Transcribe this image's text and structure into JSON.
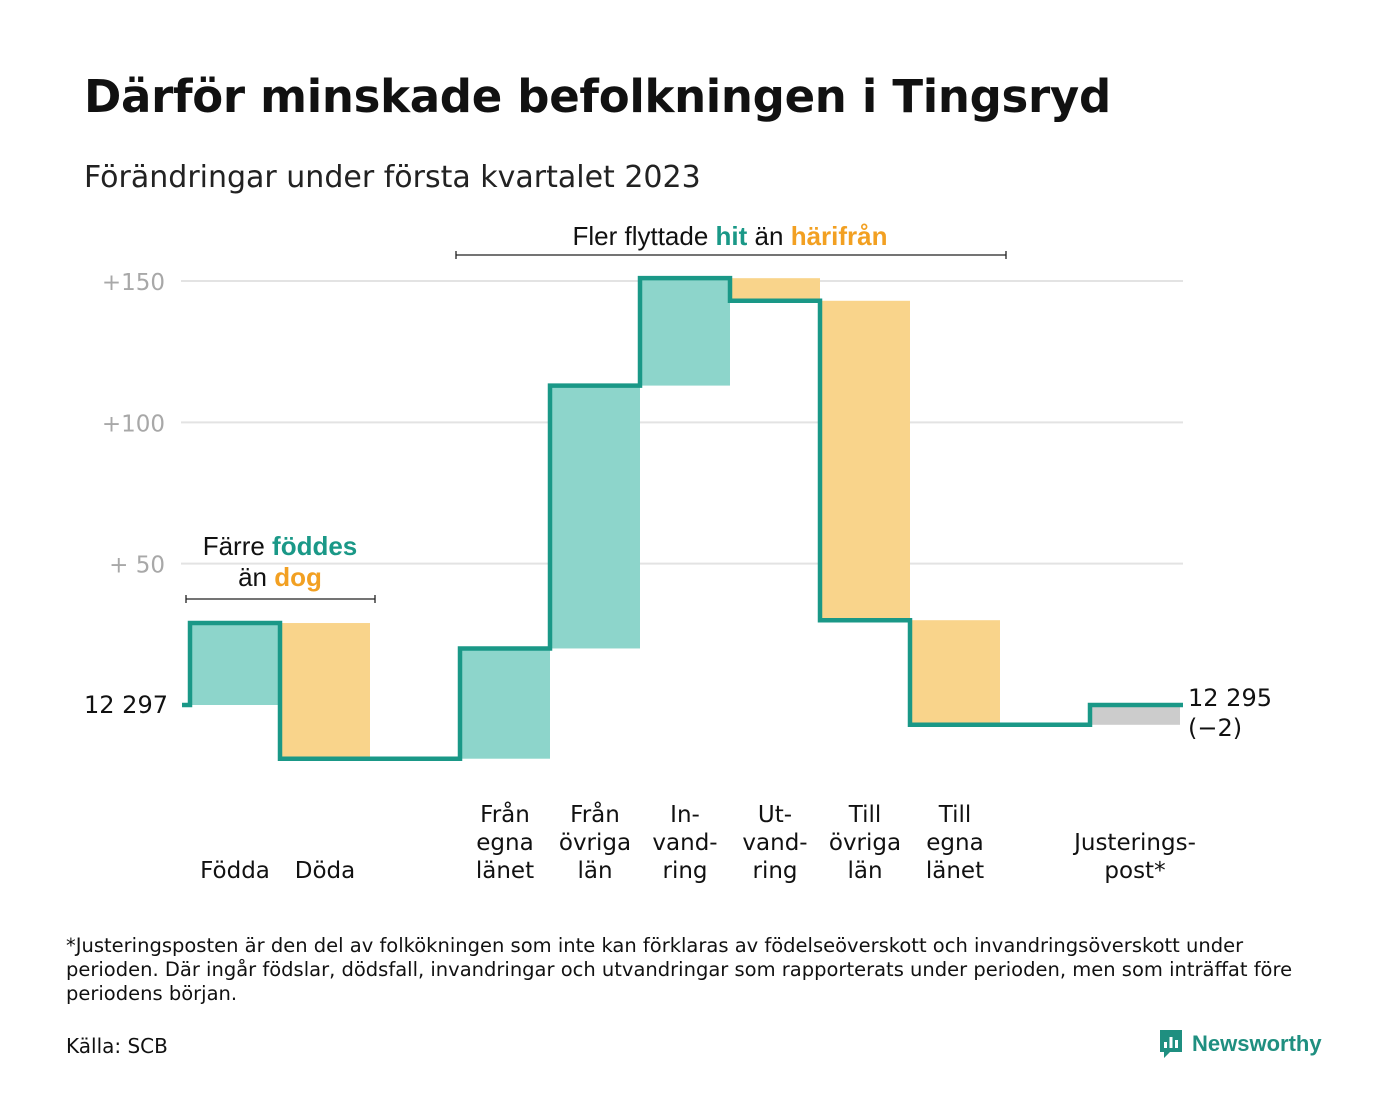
{
  "title": "Därför minskade befolkningen i Tingsryd",
  "subtitle": "Förändringar under första kvartalet 2023",
  "colors": {
    "in": "#8dd5cb",
    "out": "#f9d48b",
    "adjust": "#cccccc",
    "line": "#1a9887",
    "grid": "#e3e3e3",
    "tick": "#a8a8a8",
    "accent_teal": "#1a9887",
    "accent_orange": "#f2a022"
  },
  "chart_data": {
    "type": "waterfall",
    "start_value": 12297,
    "start_label": "12 297",
    "end_label": "12 295",
    "end_change_label": "(−2)",
    "y_ticks": [
      {
        "value": 50,
        "label": "+ 50"
      },
      {
        "value": 100,
        "label": "+100"
      },
      {
        "value": 150,
        "label": "+150"
      }
    ],
    "ylim": [
      -30,
      150
    ],
    "steps": [
      {
        "category": [
          "Födda"
        ],
        "change": 29,
        "kind": "in"
      },
      {
        "category": [
          "Döda"
        ],
        "change": -48,
        "kind": "out"
      },
      {
        "category": [],
        "change": 0,
        "kind": "gap"
      },
      {
        "category": [
          "Från",
          "egna",
          "länet"
        ],
        "change": 39,
        "kind": "in"
      },
      {
        "category": [
          "Från",
          "övriga",
          "län"
        ],
        "change": 93,
        "kind": "in"
      },
      {
        "category": [
          "In-",
          "vand-",
          "ring"
        ],
        "change": 38,
        "kind": "in"
      },
      {
        "category": [
          "Ut-",
          "vand-",
          "ring"
        ],
        "change": -8,
        "kind": "out"
      },
      {
        "category": [
          "Till",
          "övriga",
          "län"
        ],
        "change": -113,
        "kind": "out"
      },
      {
        "category": [
          "Till",
          "egna",
          "länet"
        ],
        "change": -37,
        "kind": "out"
      },
      {
        "category": [],
        "change": 0,
        "kind": "gap"
      },
      {
        "category": [
          "Justerings-",
          "post*"
        ],
        "change": 7,
        "kind": "adjust"
      }
    ],
    "annotations": [
      {
        "parts": [
          {
            "text": "Färre ",
            "style": "plain"
          },
          {
            "text": "föddes",
            "style": "teal"
          }
        ],
        "parts2": [
          {
            "text": "än ",
            "style": "plain"
          },
          {
            "text": "dog",
            "style": "orange"
          }
        ]
      },
      {
        "parts": [
          {
            "text": "Fler flyttade ",
            "style": "plain"
          },
          {
            "text": "hit",
            "style": "teal"
          },
          {
            "text": " än ",
            "style": "plain"
          },
          {
            "text": "härifrån",
            "style": "orange"
          }
        ],
        "parts2": []
      }
    ]
  },
  "footnote": "*Justeringsposten är den del av folkökningen som inte kan förklaras av födelseöverskott och invandringsöverskott under perioden. Där ingår födslar, dödsfall, invandringar och utvandringar som rapporterats under perioden, men som inträffat före periodens början.",
  "source": "Källa: SCB",
  "brand": {
    "name": "Newsworthy",
    "icon": "newsworthy-logo-icon"
  }
}
